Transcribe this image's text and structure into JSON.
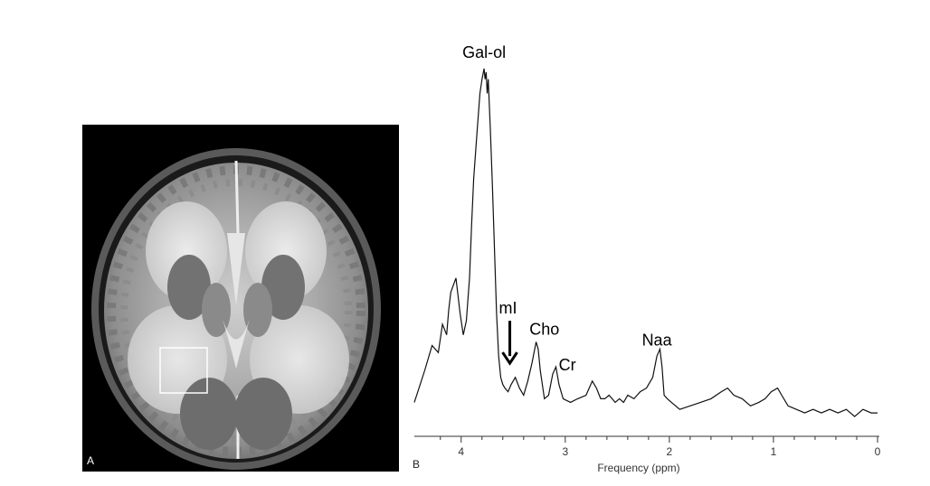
{
  "panel_a": {
    "letter": "A"
  },
  "panel_b": {
    "letter": "B"
  },
  "chart_data": {
    "type": "line",
    "xlabel": "Frequency (ppm)",
    "ylabel": "",
    "xlim": [
      4.45,
      0
    ],
    "x_reversed": true,
    "ylim": [
      0,
      100
    ],
    "grid": false,
    "x_ticks": [
      4,
      3,
      2,
      1,
      0
    ],
    "x_tick_labels": [
      "4",
      "3",
      "2",
      "1",
      "0"
    ],
    "annotations": [
      {
        "text": "Gal-ol",
        "x": 3.78,
        "y": 102
      },
      {
        "text": "mI",
        "x": 3.55,
        "y": 30
      },
      {
        "text": "Cho",
        "x": 3.2,
        "y": 24
      },
      {
        "text": "Cr",
        "x": 2.98,
        "y": 14
      },
      {
        "text": "Naa",
        "x": 2.12,
        "y": 21
      }
    ],
    "series": [
      {
        "x": [
          4.45,
          4.35,
          4.28,
          4.22,
          4.18,
          4.14,
          4.12,
          4.1,
          4.05,
          4.01,
          3.98,
          3.95,
          3.92,
          3.9,
          3.88,
          3.85,
          3.82,
          3.8,
          3.78,
          3.77,
          3.76,
          3.75,
          3.74,
          3.72,
          3.7,
          3.68,
          3.66,
          3.64,
          3.62,
          3.6,
          3.58,
          3.55,
          3.52,
          3.48,
          3.44,
          3.4,
          3.36,
          3.32,
          3.28,
          3.26,
          3.24,
          3.2,
          3.16,
          3.12,
          3.09,
          3.06,
          3.02,
          2.95,
          2.88,
          2.8,
          2.74,
          2.7,
          2.66,
          2.62,
          2.58,
          2.52,
          2.48,
          2.44,
          2.4,
          2.34,
          2.28,
          2.22,
          2.16,
          2.12,
          2.09,
          2.07,
          2.05,
          2.02,
          1.98,
          1.9,
          1.8,
          1.7,
          1.6,
          1.5,
          1.44,
          1.38,
          1.3,
          1.22,
          1.14,
          1.08,
          1.02,
          0.96,
          0.92,
          0.86,
          0.78,
          0.7,
          0.62,
          0.54,
          0.46,
          0.38,
          0.3,
          0.22,
          0.14,
          0.06,
          0.0
        ],
        "y": [
          5,
          14,
          21,
          19,
          27,
          24,
          31,
          36,
          40,
          30,
          24,
          28,
          40,
          55,
          68,
          80,
          92,
          96,
          99,
          96,
          98,
          92,
          96,
          82,
          66,
          48,
          30,
          18,
          12,
          10,
          9,
          8,
          10,
          12,
          9,
          7,
          11,
          16,
          22,
          20,
          14,
          6,
          7,
          13,
          15,
          10,
          6,
          5,
          6,
          7,
          11,
          9,
          6,
          6,
          7,
          5,
          6,
          5,
          7,
          6,
          8,
          9,
          12,
          18,
          20,
          15,
          7,
          6,
          5,
          3,
          4,
          5,
          6,
          8,
          9,
          7,
          6,
          4,
          5,
          6,
          8,
          9,
          7,
          4,
          3,
          2,
          3,
          2,
          3,
          2,
          3,
          1,
          3,
          2,
          2
        ]
      }
    ]
  }
}
